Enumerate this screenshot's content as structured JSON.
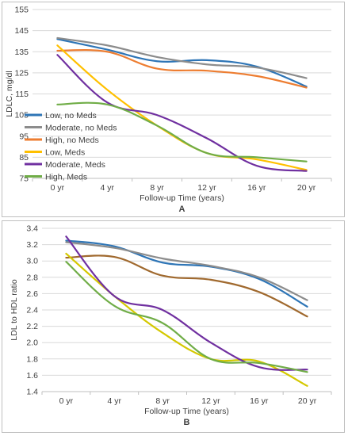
{
  "chart_data": [
    {
      "type": "line",
      "panel_label": "A",
      "title": "",
      "xlabel": "Follow-up Time (years)",
      "ylabel": "LDLC, mg/dl",
      "categories": [
        "0 yr",
        "4 yr",
        "8 yr",
        "12 yr",
        "16 yr",
        "20 yr"
      ],
      "ylim": [
        75,
        155
      ],
      "yticks": [
        75,
        85,
        95,
        105,
        115,
        125,
        135,
        145,
        155
      ],
      "grid": true,
      "legend": "left-middle",
      "series": [
        {
          "name": "Low, no Meds",
          "color": "#2e75b6",
          "values": [
            141,
            136,
            130.5,
            131,
            128,
            118.5
          ]
        },
        {
          "name": "Moderate, no Meds",
          "color": "#8c8c8c",
          "values": [
            141.5,
            138,
            132.5,
            129,
            127.5,
            122.5
          ]
        },
        {
          "name": "High, no Meds",
          "color": "#ed7d31",
          "values": [
            135.5,
            135,
            127,
            126,
            123.5,
            118
          ]
        },
        {
          "name": "Low, Meds",
          "color": "#ffc000",
          "values": [
            138,
            117,
            100,
            87,
            84,
            79
          ]
        },
        {
          "name": "Moderate, Meds",
          "color": "#7030a0",
          "values": [
            133.5,
            111,
            105,
            94,
            81,
            78.5
          ]
        },
        {
          "name": "High, Meds",
          "color": "#70ad47",
          "values": [
            110,
            110,
            100,
            87,
            85,
            83
          ]
        }
      ]
    },
    {
      "type": "line",
      "panel_label": "B",
      "title": "",
      "xlabel": "Follow-up Time (years)",
      "ylabel": "LDL to HDL ratio",
      "categories": [
        "0 yr",
        "4 yr",
        "8 yr",
        "12 yr",
        "16 yr",
        "20 yr"
      ],
      "ylim": [
        1.4,
        3.4
      ],
      "yticks": [
        1.4,
        1.6,
        1.8,
        2.0,
        2.2,
        2.4,
        2.6,
        2.8,
        3.0,
        3.2,
        3.4
      ],
      "grid": true,
      "legend": "none",
      "series": [
        {
          "name": "",
          "color": "#2e75b6",
          "values": [
            3.25,
            3.18,
            2.98,
            2.93,
            2.78,
            2.44
          ]
        },
        {
          "name": "",
          "color": "#8c8c8c",
          "values": [
            3.23,
            3.16,
            3.03,
            2.94,
            2.8,
            2.52
          ]
        },
        {
          "name": "",
          "color": "#a0692e",
          "values": [
            3.04,
            3.05,
            2.82,
            2.77,
            2.62,
            2.32
          ]
        },
        {
          "name": "",
          "color": "#d4c800",
          "values": [
            3.09,
            2.57,
            2.12,
            1.8,
            1.77,
            1.47
          ]
        },
        {
          "name": "",
          "color": "#7030a0",
          "values": [
            3.3,
            2.57,
            2.4,
            2.0,
            1.7,
            1.67
          ]
        },
        {
          "name": "",
          "color": "#70ad47",
          "values": [
            2.99,
            2.45,
            2.24,
            1.8,
            1.75,
            1.64
          ]
        }
      ]
    }
  ]
}
